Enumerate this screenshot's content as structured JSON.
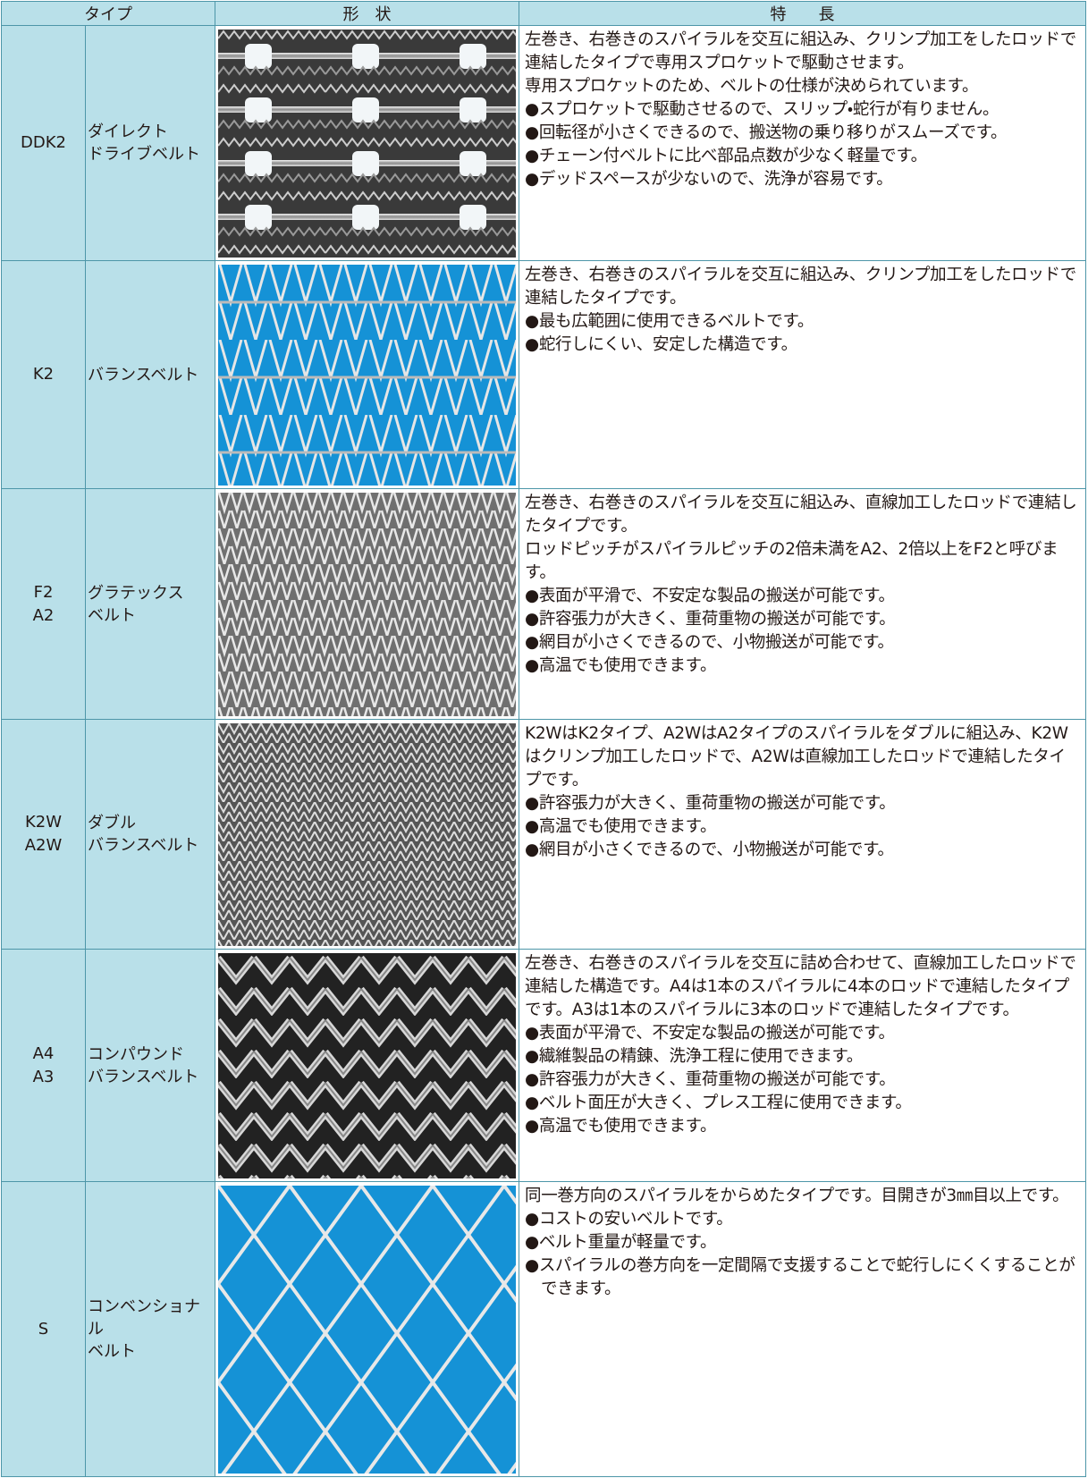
{
  "header": {
    "type": "タイプ",
    "shape": "形　状",
    "features": "特　　長"
  },
  "rows": [
    {
      "code": [
        "DDK2"
      ],
      "name": [
        "ダイレクト",
        "ドライブベルト"
      ],
      "description": [
        "左巻き、右巻きのスパイラルを交互に組込み、クリンプ加工をしたロッドで連結したタイプで専用スプロケットで駆動させます。",
        "専用スプロケットのため、ベルトの仕様が決められています。"
      ],
      "bullets": [
        "●スプロケットで駆動させるので、スリップ・蛇行が有りません。",
        "●回転径が小さくできるので、搬送物の乗り移りがスムーズです。",
        "●チェーン付ベルトに比べ部品点数が少なく軽量です。",
        "●デッドスペースが少ないので、洗浄が容易です。"
      ]
    },
    {
      "code": [
        "K2"
      ],
      "name": [
        "バランスベルト"
      ],
      "description": [
        "左巻き、右巻きのスパイラルを交互に組込み、クリンプ加工をしたロッドで連結したタイプです。"
      ],
      "bullets": [
        "●最も広範囲に使用できるベルトです。",
        "●蛇行しにくい、安定した構造です。"
      ]
    },
    {
      "code": [
        "F2",
        "A2"
      ],
      "name": [
        "グラテックス",
        "ベルト"
      ],
      "description": [
        "左巻き、右巻きのスパイラルを交互に組込み、直線加工したロッドで連結したタイプです。",
        "ロッドピッチがスパイラルピッチの2倍未満をA2、2倍以上をF2と呼びます。"
      ],
      "bullets": [
        "●表面が平滑で、不安定な製品の搬送が可能です。",
        "●許容張力が大きく、重荷重物の搬送が可能です。",
        "●網目が小さくできるので、小物搬送が可能です。",
        "●高温でも使用できます。"
      ]
    },
    {
      "code": [
        "K2W",
        "A2W"
      ],
      "name": [
        "ダブル",
        "バランスベルト"
      ],
      "description": [
        "K2WはK2タイプ、A2WはA2タイプのスパイラルをダブルに組込み、K2Wはクリンプ加工したロッドで、A2Wは直線加工したロッドで連結したタイプです。"
      ],
      "bullets": [
        "●許容張力が大きく、重荷重物の搬送が可能です。",
        "●高温でも使用できます。",
        "●網目が小さくできるので、小物搬送が可能です。"
      ]
    },
    {
      "code": [
        "A4",
        "A3"
      ],
      "name": [
        "コンパウンド",
        "バランスベルト"
      ],
      "description": [
        "左巻き、右巻きのスパイラルを交互に詰め合わせて、直線加工したロッドで連結した構造です。A4は1本のスパイラルに4本のロッドで連結したタイプです。A3は1本のスパイラルに3本のロッドで連結したタイプです。"
      ],
      "bullets": [
        "●表面が平滑で、不安定な製品の搬送が可能です。",
        "●繊維製品の精錬、洗浄工程に使用できます。",
        "●許容張力が大きく、重荷重物の搬送が可能です。",
        "●ベルト面圧が大きく、プレス工程に使用できます。",
        "●高温でも使用できます。"
      ]
    },
    {
      "code": [
        "S"
      ],
      "name": [
        "コンベンショナル",
        "ベルト"
      ],
      "description": [
        "同一巻方向のスパイラルをからめたタイプです。目開きが3㎜目以上です。"
      ],
      "bullets": [
        "●コストの安いベルトです。",
        "●ベルト重量が軽量です。",
        "●スパイラルの巻方向を一定間隔で支援することで蛇行しにくくすることができます。"
      ]
    }
  ]
}
